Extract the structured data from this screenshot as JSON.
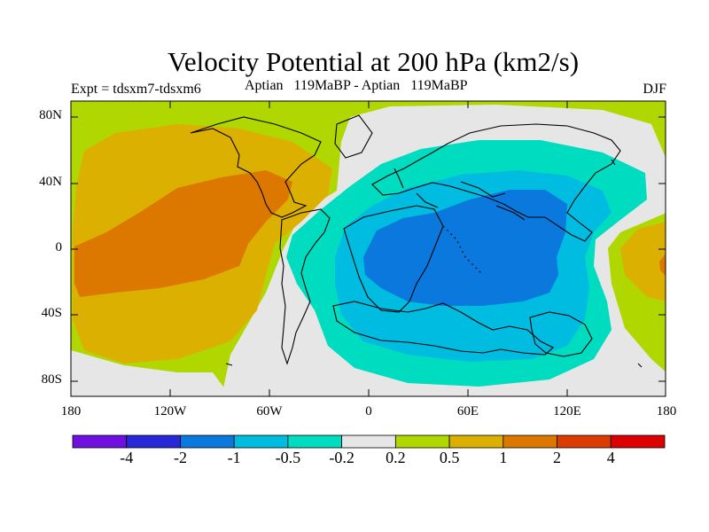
{
  "figure": {
    "title": "Velocity Potential at 200 hPa (km2/s)",
    "experiment": "Expt = tdsxm7-tdsxm6",
    "period": "Aptian   119MaBP - Aptian   119MaBP",
    "season": "DJF"
  },
  "map": {
    "projection": "cylindrical-equidistant",
    "lon_range": [
      -180,
      180
    ],
    "lat_range": [
      -90,
      90
    ],
    "y_ticks": [
      "80N",
      "40N",
      "0",
      "40S",
      "80S"
    ],
    "x_ticks": [
      "180",
      "120W",
      "60W",
      "0",
      "60E",
      "120E",
      "180"
    ],
    "field": "velocity potential anomaly (km2/s)"
  },
  "colorbar": {
    "colors": [
      "#7010e0",
      "#2828d8",
      "#0a78dc",
      "#00bce0",
      "#00dcc0",
      "#e6e6e6",
      "#b0d800",
      "#dcb000",
      "#dc7800",
      "#dc3c00",
      "#dc0000"
    ],
    "labels": [
      "-4",
      "-2",
      "-1",
      "-0.5",
      "-0.2",
      "0.2",
      "0.5",
      "1",
      "2",
      "4"
    ]
  },
  "chart_data": {
    "type": "contour-map",
    "title": "Velocity Potential at 200 hPa (km2/s)",
    "levels": [
      -4,
      -2,
      -1,
      -0.5,
      -0.2,
      0.2,
      0.5,
      1,
      2,
      4
    ],
    "regions": [
      {
        "name": "pacific-positive-core",
        "level_range": [
          1,
          2
        ],
        "center_lon": -110,
        "center_lat": 15
      },
      {
        "name": "pacific-positive",
        "level_range": [
          0.5,
          1
        ],
        "center_lon": -120,
        "center_lat": 10
      },
      {
        "name": "indian-ocean-negative-core",
        "level_range": [
          -1,
          -0.5
        ],
        "center_lon": 50,
        "center_lat": -5
      },
      {
        "name": "indian-ocean-negative",
        "level_range": [
          -0.5,
          -0.2
        ],
        "center_lon": 45,
        "center_lat": 0
      },
      {
        "name": "east-edge-positive",
        "level_range": [
          1,
          2
        ],
        "center_lon": 178,
        "center_lat": -5
      }
    ]
  }
}
